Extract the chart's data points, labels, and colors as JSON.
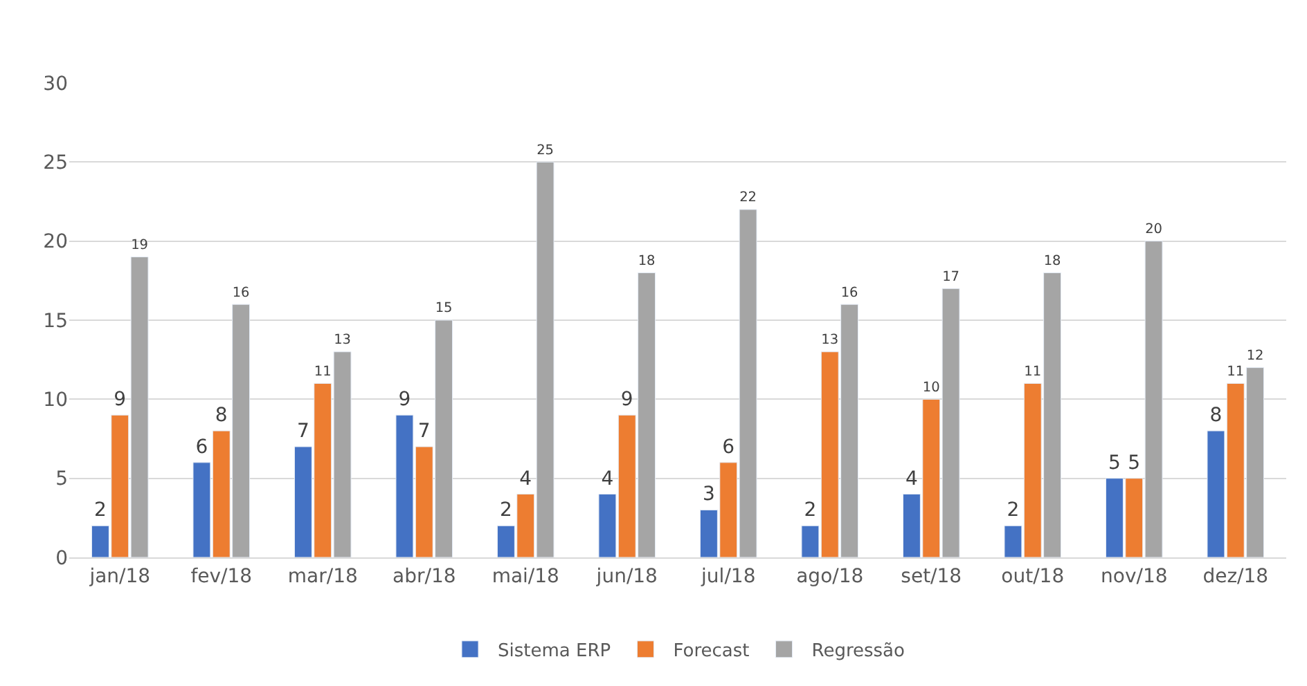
{
  "chart_data": {
    "type": "bar",
    "categories": [
      "jan/18",
      "fev/18",
      "mar/18",
      "abr/18",
      "mai/18",
      "jun/18",
      "jul/18",
      "ago/18",
      "set/18",
      "out/18",
      "nov/18",
      "dez/18"
    ],
    "series": [
      {
        "name": "Sistema ERP",
        "color": "#4472c4",
        "values": [
          2,
          6,
          7,
          9,
          2,
          4,
          3,
          2,
          4,
          2,
          5,
          8
        ]
      },
      {
        "name": "Forecast",
        "color": "#ed7d31",
        "values": [
          9,
          8,
          11,
          7,
          4,
          9,
          6,
          13,
          10,
          11,
          5,
          11
        ]
      },
      {
        "name": "Regressão",
        "color": "#a5a5a5",
        "values": [
          19,
          16,
          13,
          15,
          25,
          18,
          22,
          16,
          17,
          18,
          20,
          12
        ]
      }
    ],
    "ylim": [
      0,
      30
    ],
    "yticks": [
      0,
      5,
      10,
      15,
      20,
      25,
      30
    ],
    "grid": "y",
    "legend": "bottom",
    "data_labels": true
  }
}
